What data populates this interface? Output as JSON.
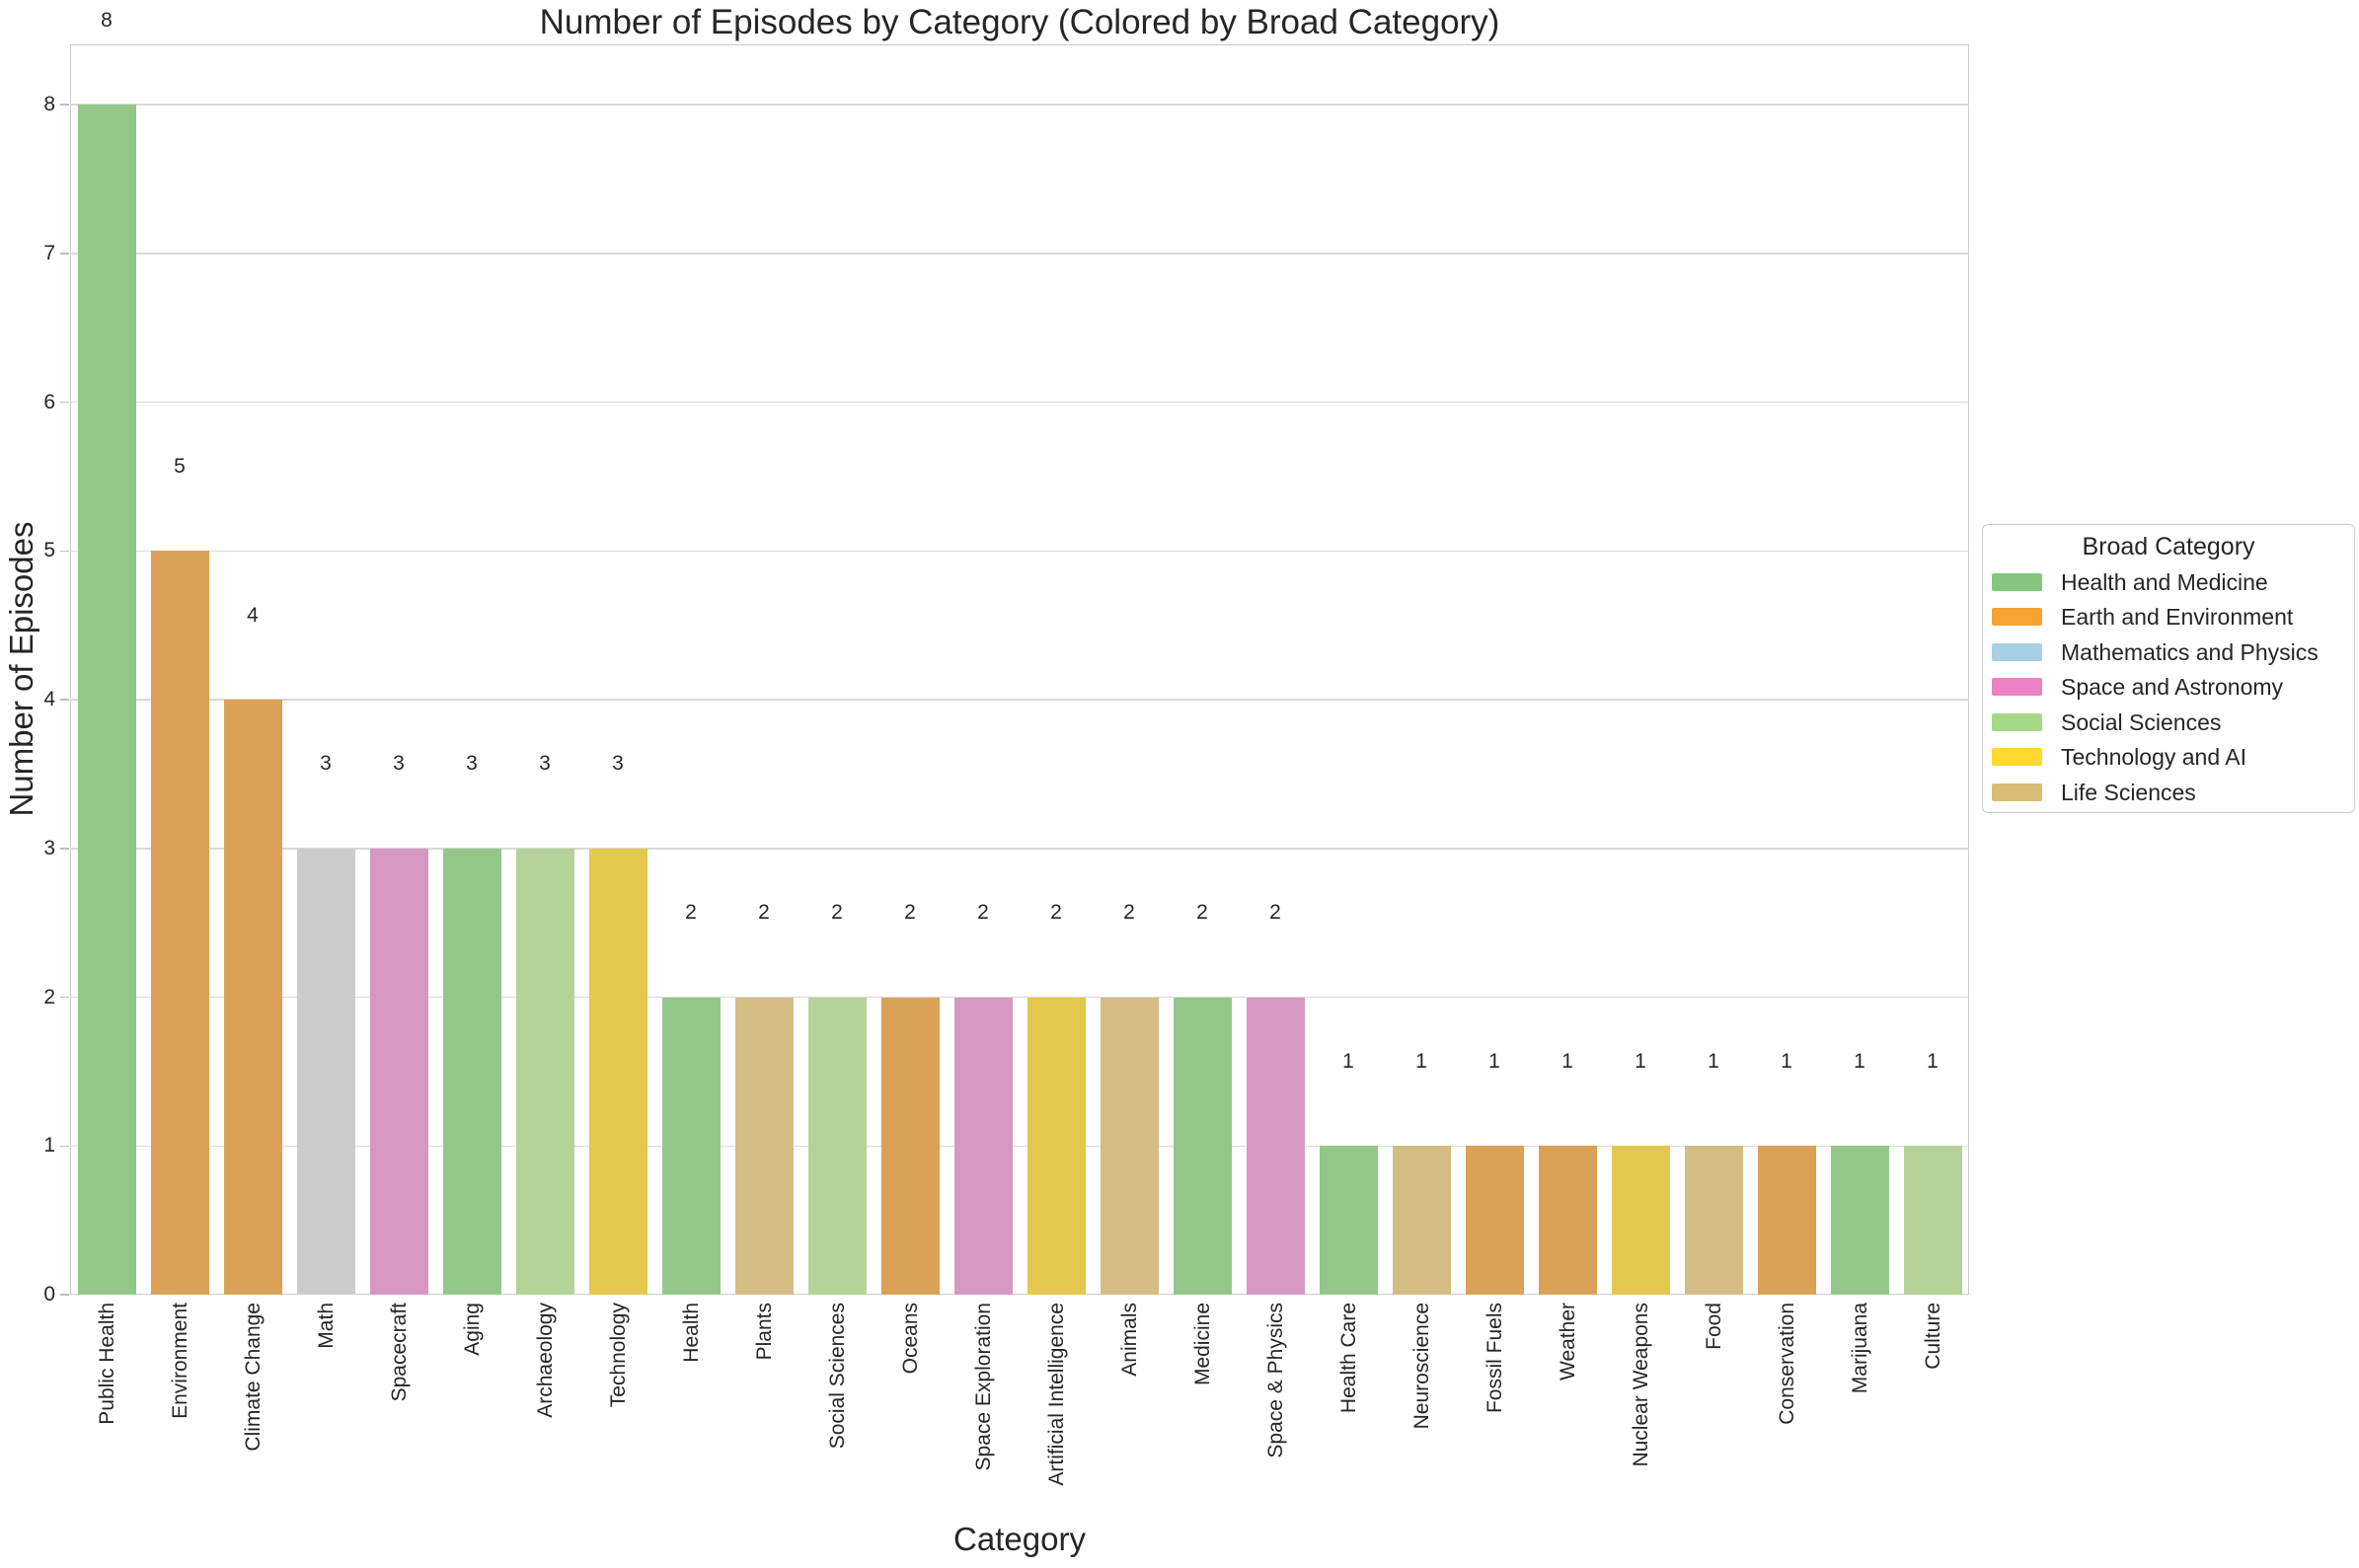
{
  "title": "Number of Episodes by Category (Colored by Broad Category)",
  "axes": {
    "x_label": "Category",
    "y_label": "Number of Episodes"
  },
  "legend": {
    "title": "Broad Category",
    "items": [
      {
        "label": "Health and Medicine",
        "color": "#83c87e"
      },
      {
        "label": "Earth and Environment",
        "color": "#f5a433"
      },
      {
        "label": "Mathematics and Physics",
        "color": "#a9cfe5"
      },
      {
        "label": "Space and Astronomy",
        "color": "#ea82c4"
      },
      {
        "label": "Social Sciences",
        "color": "#a5d988"
      },
      {
        "label": "Technology and AI",
        "color": "#ffd92f"
      },
      {
        "label": "Life Sciences",
        "color": "#d9bd74"
      }
    ]
  },
  "colors": {
    "background": "#ffffff",
    "axes_border": "#cbcbcb",
    "grid": "#d9d9d9",
    "text": "#262626"
  },
  "chart_data": {
    "type": "bar",
    "title": "Number of Episodes by Category (Colored by Broad Category)",
    "xlabel": "Category",
    "ylabel": "Number of Episodes",
    "ylim": [
      0,
      8.4
    ],
    "y_ticks": [
      0,
      1,
      2,
      3,
      4,
      5,
      6,
      7,
      8
    ],
    "grid": "horizontal-only",
    "legend_position": "center-right outside plot",
    "bar_value_labels_shown": true,
    "x_tick_rotation_deg": 90,
    "categories": [
      "Public Health",
      "Environment",
      "Climate Change",
      "Math",
      "Spacecraft",
      "Aging",
      "Archaeology",
      "Technology",
      "Health",
      "Plants",
      "Social Sciences",
      "Oceans",
      "Space Exploration",
      "Artificial Intelligence",
      "Animals",
      "Medicine",
      "Space & Physics",
      "Health Care",
      "Neuroscience",
      "Fossil Fuels",
      "Weather",
      "Nuclear Weapons",
      "Food",
      "Conservation",
      "Marijuana",
      "Culture"
    ],
    "values": [
      8,
      5,
      4,
      3,
      3,
      3,
      3,
      3,
      2,
      2,
      2,
      2,
      2,
      2,
      2,
      2,
      2,
      1,
      1,
      1,
      1,
      1,
      1,
      1,
      1,
      1
    ],
    "bars": [
      {
        "category": "Public Health",
        "value": 8,
        "broad_category": "Health and Medicine",
        "color": "#93c78a"
      },
      {
        "category": "Environment",
        "value": 5,
        "broad_category": "Earth and Environment",
        "color": "#dba157"
      },
      {
        "category": "Climate Change",
        "value": 4,
        "broad_category": "Earth and Environment",
        "color": "#dba157"
      },
      {
        "category": "Math",
        "value": 3,
        "broad_category": "Mathematics and Physics",
        "color": "#cbcbcb"
      },
      {
        "category": "Spacecraft",
        "value": 3,
        "broad_category": "Space and Astronomy",
        "color": "#d698c0"
      },
      {
        "category": "Aging",
        "value": 3,
        "broad_category": "Health and Medicine",
        "color": "#93c78a"
      },
      {
        "category": "Archaeology",
        "value": 3,
        "broad_category": "Social Sciences",
        "color": "#b5d398"
      },
      {
        "category": "Technology",
        "value": 3,
        "broad_category": "Technology and AI",
        "color": "#e3c84d"
      },
      {
        "category": "Health",
        "value": 2,
        "broad_category": "Health and Medicine",
        "color": "#93c78a"
      },
      {
        "category": "Plants",
        "value": 2,
        "broad_category": "Life Sciences",
        "color": "#d3bd85"
      },
      {
        "category": "Social Sciences",
        "value": 2,
        "broad_category": "Social Sciences",
        "color": "#b5d398"
      },
      {
        "category": "Oceans",
        "value": 2,
        "broad_category": "Earth and Environment",
        "color": "#dba157"
      },
      {
        "category": "Space Exploration",
        "value": 2,
        "broad_category": "Space and Astronomy",
        "color": "#d698c0"
      },
      {
        "category": "Artificial Intelligence",
        "value": 2,
        "broad_category": "Technology and AI",
        "color": "#e3c84d"
      },
      {
        "category": "Animals",
        "value": 2,
        "broad_category": "Life Sciences",
        "color": "#d3bd85"
      },
      {
        "category": "Medicine",
        "value": 2,
        "broad_category": "Health and Medicine",
        "color": "#93c78a"
      },
      {
        "category": "Space & Physics",
        "value": 2,
        "broad_category": "Space and Astronomy",
        "color": "#d698c0"
      },
      {
        "category": "Health Care",
        "value": 1,
        "broad_category": "Health and Medicine",
        "color": "#93c78a"
      },
      {
        "category": "Neuroscience",
        "value": 1,
        "broad_category": "Life Sciences",
        "color": "#d3bd85"
      },
      {
        "category": "Fossil Fuels",
        "value": 1,
        "broad_category": "Earth and Environment",
        "color": "#dba157"
      },
      {
        "category": "Weather",
        "value": 1,
        "broad_category": "Earth and Environment",
        "color": "#dba157"
      },
      {
        "category": "Nuclear Weapons",
        "value": 1,
        "broad_category": "Technology and AI",
        "color": "#e3c84d"
      },
      {
        "category": "Food",
        "value": 1,
        "broad_category": "Life Sciences",
        "color": "#d3bd85"
      },
      {
        "category": "Conservation",
        "value": 1,
        "broad_category": "Earth and Environment",
        "color": "#dba157"
      },
      {
        "category": "Marijuana",
        "value": 1,
        "broad_category": "Health and Medicine",
        "color": "#93c78a"
      },
      {
        "category": "Culture",
        "value": 1,
        "broad_category": "Social Sciences",
        "color": "#b5d398"
      }
    ]
  }
}
